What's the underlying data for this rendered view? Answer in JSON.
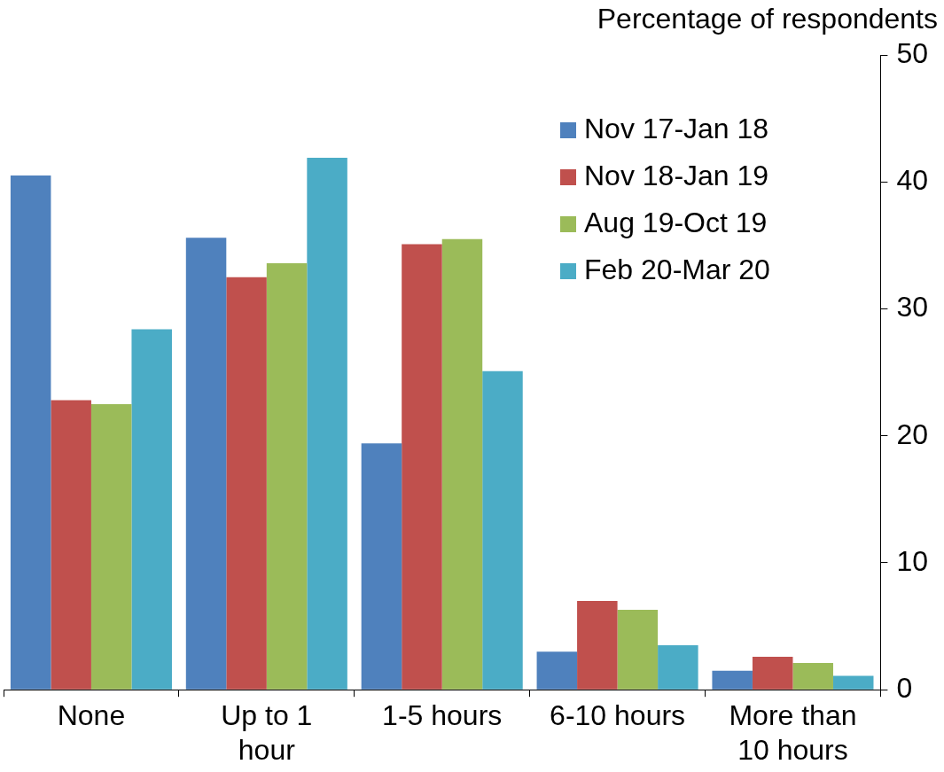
{
  "chart_data": {
    "type": "bar",
    "ylabel": "Percentage of respondents",
    "categories": [
      "None",
      "Up to 1 hour",
      "1-5 hours",
      "6-10 hours",
      "More than 10 hours"
    ],
    "series": [
      {
        "name": "Nov 17-Jan 18",
        "color": "#4f81bd",
        "values": [
          40.5,
          35.6,
          19.4,
          3.0,
          1.5
        ]
      },
      {
        "name": "Nov 18-Jan 19",
        "color": "#c0504d",
        "values": [
          22.8,
          32.5,
          35.1,
          7.0,
          2.6
        ]
      },
      {
        "name": "Aug 19-Oct 19",
        "color": "#9bbb59",
        "values": [
          22.5,
          33.6,
          35.5,
          6.3,
          2.1
        ]
      },
      {
        "name": "Feb 20-Mar 20",
        "color": "#4bacc6",
        "values": [
          28.4,
          41.9,
          25.1,
          3.5,
          1.1
        ]
      }
    ],
    "ylim": [
      0,
      50
    ],
    "yticks": [
      0,
      10,
      20,
      30,
      40,
      50
    ],
    "grid": false,
    "legend": "top right"
  }
}
